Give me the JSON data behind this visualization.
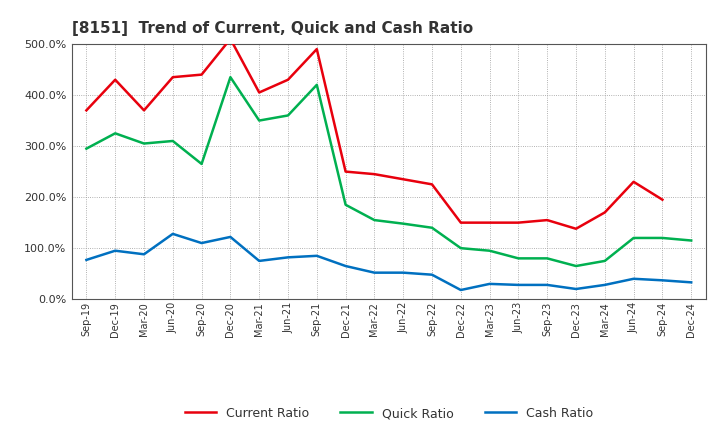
{
  "title": "[8151]  Trend of Current, Quick and Cash Ratio",
  "x_labels": [
    "Sep-19",
    "Dec-19",
    "Mar-20",
    "Jun-20",
    "Sep-20",
    "Dec-20",
    "Mar-21",
    "Jun-21",
    "Sep-21",
    "Dec-21",
    "Mar-22",
    "Jun-22",
    "Sep-22",
    "Dec-22",
    "Mar-23",
    "Jun-23",
    "Sep-23",
    "Dec-23",
    "Mar-24",
    "Jun-24",
    "Sep-24",
    "Dec-24"
  ],
  "current_ratio": [
    370,
    430,
    370,
    435,
    440,
    510,
    405,
    430,
    490,
    250,
    245,
    235,
    225,
    150,
    150,
    150,
    155,
    138,
    170,
    230,
    195,
    null
  ],
  "quick_ratio": [
    295,
    325,
    305,
    310,
    265,
    435,
    350,
    360,
    420,
    185,
    155,
    148,
    140,
    100,
    95,
    80,
    80,
    65,
    75,
    120,
    120,
    115
  ],
  "cash_ratio": [
    77,
    95,
    88,
    128,
    110,
    122,
    75,
    82,
    85,
    65,
    52,
    52,
    48,
    18,
    30,
    28,
    28,
    20,
    28,
    40,
    37,
    33
  ],
  "current_color": "#e8000d",
  "quick_color": "#00b050",
  "cash_color": "#0070c0",
  "ylim": [
    0,
    500
  ],
  "ytick_values": [
    0,
    100,
    200,
    300,
    400,
    500
  ],
  "bg_color": "#ffffff",
  "plot_bg_color": "#ffffff",
  "grid_color": "#999999",
  "line_width": 1.8,
  "title_color": "#333333",
  "legend_entries": [
    "Current Ratio",
    "Quick Ratio",
    "Cash Ratio"
  ]
}
